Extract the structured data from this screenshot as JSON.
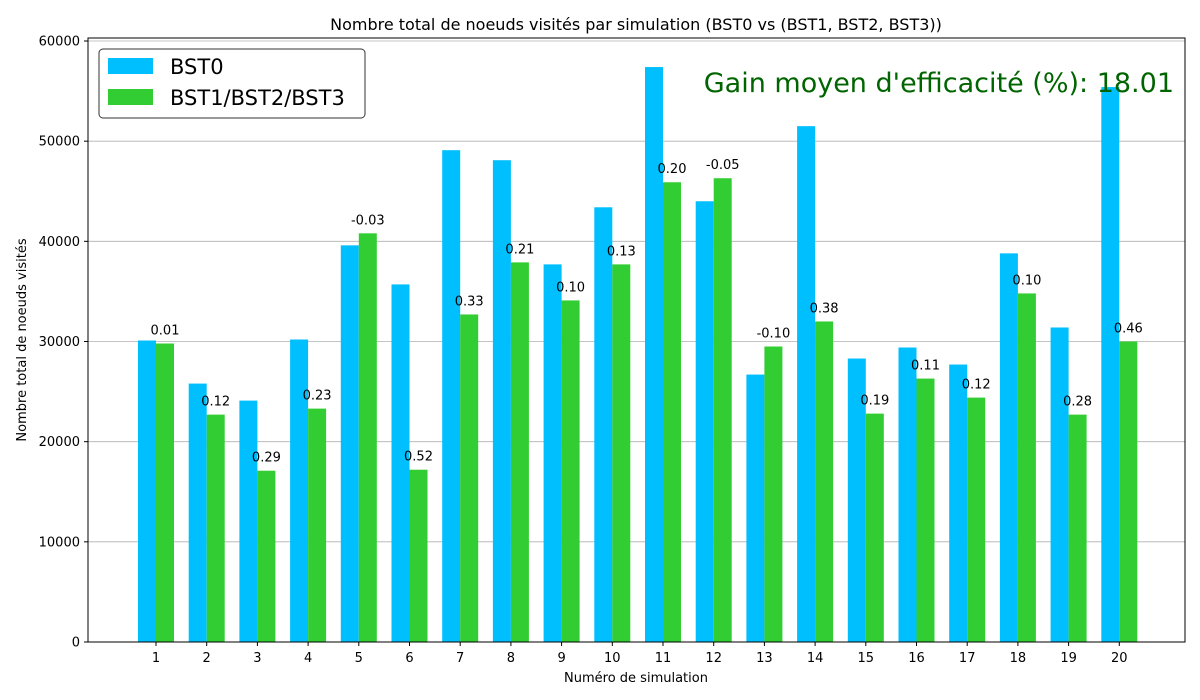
{
  "chart_data": {
    "type": "bar",
    "title": "Nombre total de noeuds visités par simulation (BST0 vs (BST1, BST2, BST3))",
    "xlabel": "Numéro de simulation",
    "ylabel": "Nombre total de noeuds visités",
    "ylim": [
      0,
      60300
    ],
    "yticks": [
      "0",
      "10000",
      "20000",
      "30000",
      "40000",
      "50000",
      "60000"
    ],
    "categories": [
      "1",
      "2",
      "3",
      "4",
      "5",
      "6",
      "7",
      "8",
      "9",
      "10",
      "11",
      "12",
      "13",
      "14",
      "15",
      "16",
      "17",
      "18",
      "19",
      "20"
    ],
    "series": [
      {
        "name": "BST0",
        "color": "#00bfff",
        "values": [
          30100,
          25800,
          24100,
          30200,
          39600,
          35700,
          49100,
          48100,
          37700,
          43400,
          57400,
          44000,
          26700,
          51500,
          28300,
          29400,
          27700,
          38800,
          31400,
          55400
        ]
      },
      {
        "name": "BST1/BST2/BST3",
        "color": "#32cd32",
        "values": [
          29800,
          22700,
          17100,
          23300,
          40800,
          17200,
          32700,
          37900,
          34100,
          37700,
          45900,
          46300,
          29500,
          32000,
          22800,
          26300,
          24400,
          34800,
          22700,
          30000
        ]
      }
    ],
    "bar_labels": [
      "0.01",
      "0.12",
      "0.29",
      "0.23",
      "-0.03",
      "0.52",
      "0.33",
      "0.21",
      "0.10",
      "0.13",
      "0.20",
      "-0.05",
      "-0.10",
      "0.38",
      "0.19",
      "0.11",
      "0.12",
      "0.10",
      "0.28",
      "0.46"
    ],
    "annotation": "Gain moyen d'efficacité (%): 18.01",
    "legend_position": "top-left",
    "grid": "y"
  }
}
